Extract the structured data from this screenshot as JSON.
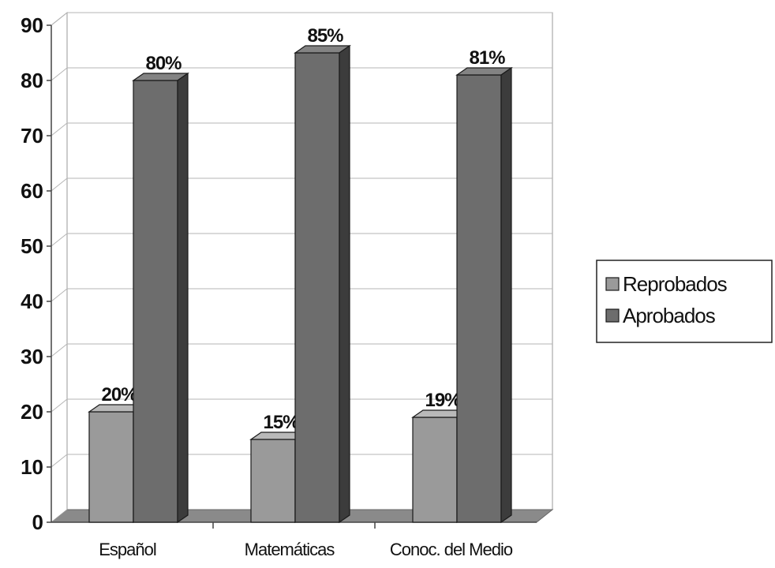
{
  "chart_data": {
    "type": "bar",
    "categories": [
      "Español",
      "Matemáticas",
      "Conoc. del Medio"
    ],
    "series": [
      {
        "name": "Reprobados",
        "values": [
          20,
          15,
          19
        ],
        "labels": [
          "20%",
          "15%",
          "19%"
        ],
        "color": "#9a9a9a"
      },
      {
        "name": "Aprobados",
        "values": [
          80,
          85,
          81
        ],
        "labels": [
          "80%",
          "85%",
          "81%"
        ],
        "color": "#6d6d6d"
      }
    ],
    "ylim": [
      0,
      90
    ],
    "yticks": [
      0,
      10,
      20,
      30,
      40,
      50,
      60,
      70,
      80,
      90
    ],
    "grid": true,
    "legend_position": "right",
    "style": "3d-column"
  }
}
